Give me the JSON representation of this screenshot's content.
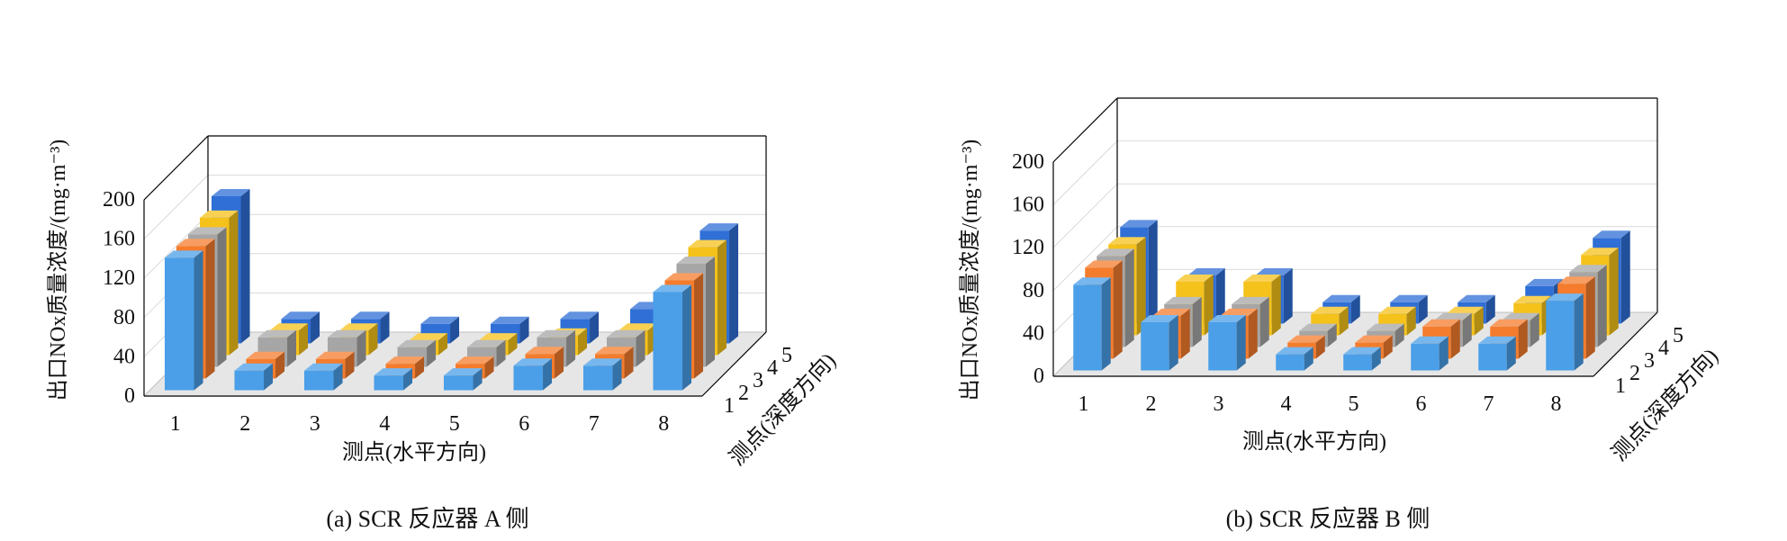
{
  "colors": {
    "series": [
      "#4a9fe8",
      "#f57c2c",
      "#a6a6a6",
      "#f5c21b",
      "#2f6fd6"
    ],
    "axis": "#000000",
    "grid": "#d9d9d9",
    "floor": "#e6e6e6"
  },
  "chart_data": [
    {
      "type": "bar3d",
      "caption": "(a)  SCR 反应器 A 侧",
      "ylabel": "出口NOx质量浓度/(mg·m⁻³)",
      "xlabel": "测点(水平方向)",
      "zlabel": "测点(深度方向)",
      "ylim": [
        0,
        200
      ],
      "yticks": [
        0,
        40,
        80,
        120,
        160,
        200
      ],
      "categories": [
        "1",
        "2",
        "3",
        "4",
        "5",
        "6",
        "7",
        "8"
      ],
      "depth_categories": [
        "1",
        "2",
        "3",
        "4",
        "5"
      ],
      "grid": true,
      "series": [
        {
          "depth": "1",
          "values": [
            135,
            20,
            20,
            15,
            15,
            25,
            25,
            100
          ]
        },
        {
          "depth": "2",
          "values": [
            135,
            20,
            20,
            15,
            15,
            25,
            25,
            100
          ]
        },
        {
          "depth": "3",
          "values": [
            135,
            30,
            30,
            20,
            20,
            30,
            30,
            105
          ]
        },
        {
          "depth": "4",
          "values": [
            140,
            25,
            25,
            15,
            15,
            20,
            25,
            110
          ]
        },
        {
          "depth": "5",
          "values": [
            150,
            25,
            25,
            20,
            20,
            25,
            35,
            115
          ]
        }
      ]
    },
    {
      "type": "bar3d",
      "caption": "(b)  SCR 反应器 B 侧",
      "ylabel": "出口NOx质量浓度/(mg·m⁻³)",
      "xlabel": "测点(水平方向)",
      "zlabel": "测点(深度方向)",
      "ylim": [
        0,
        200
      ],
      "yticks": [
        0,
        40,
        80,
        120,
        160,
        200
      ],
      "categories": [
        "1",
        "2",
        "3",
        "4",
        "5",
        "6",
        "7",
        "8"
      ],
      "depth_categories": [
        "1",
        "2",
        "3",
        "4",
        "5"
      ],
      "grid": true,
      "series": [
        {
          "depth": "1",
          "values": [
            80,
            45,
            45,
            15,
            15,
            25,
            25,
            65
          ]
        },
        {
          "depth": "2",
          "values": [
            85,
            40,
            40,
            15,
            15,
            30,
            30,
            70
          ]
        },
        {
          "depth": "3",
          "values": [
            85,
            40,
            40,
            15,
            15,
            25,
            25,
            70
          ]
        },
        {
          "depth": "4",
          "values": [
            85,
            50,
            50,
            20,
            20,
            20,
            30,
            75
          ]
        },
        {
          "depth": "5",
          "values": [
            90,
            45,
            45,
            20,
            20,
            20,
            35,
            80
          ]
        }
      ]
    }
  ]
}
